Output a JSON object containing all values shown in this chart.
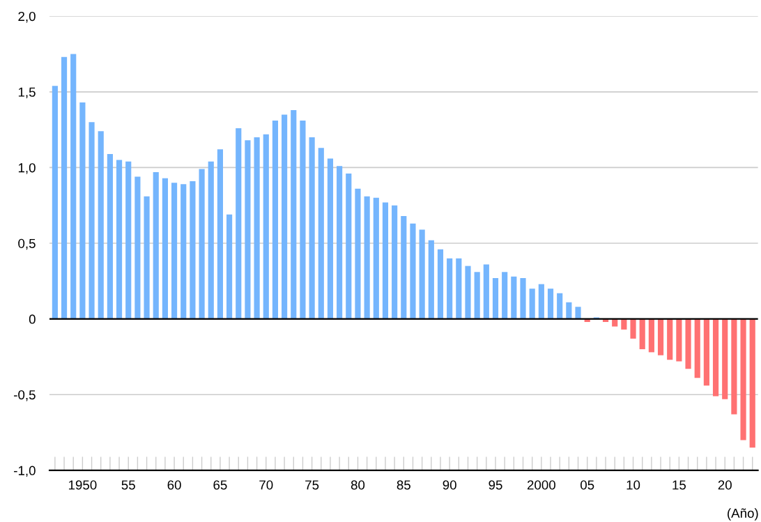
{
  "chart_data": {
    "type": "bar",
    "categories": [
      null,
      null,
      null,
      "1950",
      null,
      null,
      null,
      null,
      "55",
      null,
      null,
      null,
      null,
      "60",
      null,
      null,
      null,
      null,
      "65",
      null,
      null,
      null,
      null,
      "70",
      null,
      null,
      null,
      null,
      "75",
      null,
      null,
      null,
      null,
      "80",
      null,
      null,
      null,
      null,
      "85",
      null,
      null,
      null,
      null,
      "90",
      null,
      null,
      null,
      null,
      "95",
      null,
      null,
      null,
      null,
      "2000",
      null,
      null,
      null,
      null,
      "05",
      null,
      null,
      null,
      null,
      "10",
      null,
      null,
      null,
      null,
      "15",
      null,
      null,
      null,
      null,
      "20",
      null,
      null,
      null
    ],
    "values": [
      1.54,
      1.73,
      1.75,
      1.43,
      1.3,
      1.24,
      1.09,
      1.05,
      1.04,
      0.94,
      0.81,
      0.97,
      0.93,
      0.9,
      0.89,
      0.91,
      0.99,
      1.04,
      1.12,
      0.69,
      1.26,
      1.18,
      1.2,
      1.22,
      1.31,
      1.35,
      1.38,
      1.31,
      1.2,
      1.13,
      1.06,
      1.01,
      0.96,
      0.86,
      0.81,
      0.8,
      0.77,
      0.75,
      0.68,
      0.63,
      0.59,
      0.52,
      0.46,
      0.4,
      0.4,
      0.35,
      0.31,
      0.36,
      0.27,
      0.31,
      0.28,
      0.27,
      0.2,
      0.23,
      0.2,
      0.17,
      0.11,
      0.08,
      -0.02,
      0.01,
      -0.02,
      -0.05,
      -0.07,
      -0.13,
      -0.2,
      -0.22,
      -0.24,
      -0.27,
      -0.28,
      -0.33,
      -0.39,
      -0.44,
      -0.51,
      -0.53,
      -0.63,
      -0.8,
      -0.85
    ],
    "colors": [
      "#74b5fd",
      "#74b5fd",
      "#74b5fd",
      "#74b5fd",
      "#74b5fd",
      "#74b5fd",
      "#74b5fd",
      "#74b5fd",
      "#74b5fd",
      "#74b5fd",
      "#74b5fd",
      "#74b5fd",
      "#74b5fd",
      "#74b5fd",
      "#74b5fd",
      "#74b5fd",
      "#74b5fd",
      "#74b5fd",
      "#74b5fd",
      "#74b5fd",
      "#74b5fd",
      "#74b5fd",
      "#74b5fd",
      "#74b5fd",
      "#74b5fd",
      "#74b5fd",
      "#74b5fd",
      "#74b5fd",
      "#74b5fd",
      "#74b5fd",
      "#74b5fd",
      "#74b5fd",
      "#74b5fd",
      "#74b5fd",
      "#74b5fd",
      "#74b5fd",
      "#74b5fd",
      "#74b5fd",
      "#74b5fd",
      "#74b5fd",
      "#74b5fd",
      "#74b5fd",
      "#74b5fd",
      "#74b5fd",
      "#74b5fd",
      "#74b5fd",
      "#74b5fd",
      "#74b5fd",
      "#74b5fd",
      "#74b5fd",
      "#74b5fd",
      "#74b5fd",
      "#74b5fd",
      "#74b5fd",
      "#74b5fd",
      "#74b5fd",
      "#74b5fd",
      "#74b5fd",
      "#ff7172",
      "#74b5fd",
      "#ff7172",
      "#ff7172",
      "#ff7172",
      "#ff7172",
      "#ff7172",
      "#ff7172",
      "#ff7172",
      "#ff7172",
      "#ff7172",
      "#ff7172",
      "#ff7172",
      "#ff7172",
      "#ff7172",
      "#ff7172",
      "#ff7172",
      "#ff7172",
      "#ff7172"
    ],
    "ylim": [
      -1.0,
      2.0
    ],
    "yticks": [
      {
        "value": -1.0,
        "label": "-1,0"
      },
      {
        "value": -0.5,
        "label": "-0,5"
      },
      0,
      {
        "value": 0.5,
        "label": "0,5"
      },
      {
        "value": 1.0,
        "label": "1,0"
      },
      {
        "value": 1.5,
        "label": "1,5"
      },
      {
        "value": 2.0,
        "label": "2,0"
      }
    ],
    "grid": "y",
    "ref_lines": [
      {
        "axis": "y",
        "value": 0,
        "color": "#000000"
      }
    ],
    "annotations": [
      "(Año)"
    ]
  }
}
